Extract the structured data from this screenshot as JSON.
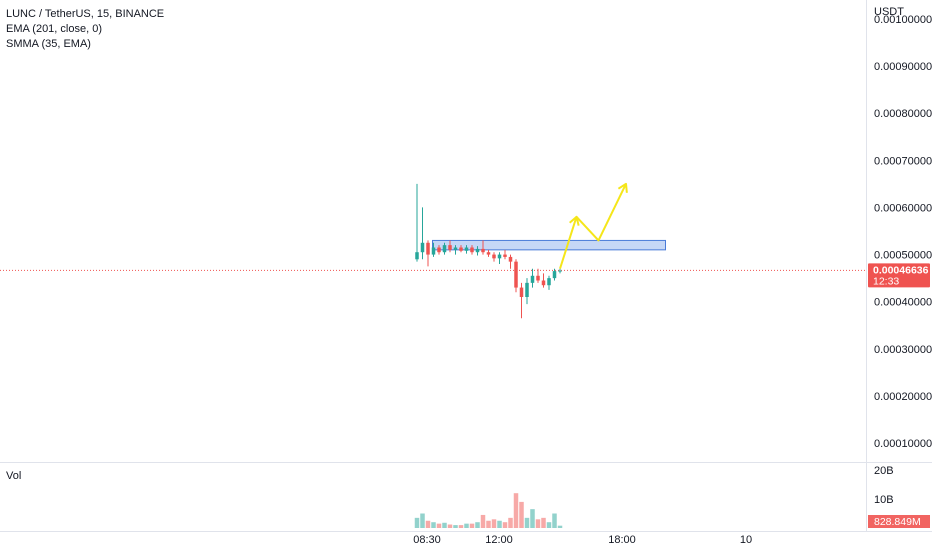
{
  "legend": {
    "symbol": "LUNC / TetherUS, 15, BINANCE",
    "ema": "EMA (201, close, 0)",
    "smma": "SMMA (35, EMA)"
  },
  "volume_label": "Vol",
  "colors": {
    "up": "#26a69a",
    "down": "#ef5350",
    "zone_fill": "#bbd0f5",
    "zone_stroke": "#4a7bd8",
    "projection": "#f5e61a",
    "price_tag": "#ef5350"
  },
  "chart_data": {
    "type": "candlestick",
    "symbol": "LUNC / TetherUS",
    "interval": "15",
    "exchange": "BINANCE",
    "y_unit": "USDT",
    "ylim": [
      6e-05,
      0.00104
    ],
    "y_ticks": [
      "0.00010000",
      "0.00020000",
      "0.00030000",
      "0.00040000",
      "0.00050000",
      "0.00060000",
      "0.00070000",
      "0.00080000",
      "0.00090000",
      "0.00100000"
    ],
    "x_ticks": [
      "08:30",
      "12:00",
      "18:00",
      "10"
    ],
    "last_price": "0.00046636",
    "countdown": "12:33",
    "candles": [
      {
        "o": 0.00049,
        "h": 0.00065,
        "l": 0.000485,
        "c": 0.000505
      },
      {
        "o": 0.000505,
        "h": 0.0006,
        "l": 0.00049,
        "c": 0.000525
      },
      {
        "o": 0.000525,
        "h": 0.00053,
        "l": 0.000475,
        "c": 0.0005
      },
      {
        "o": 0.0005,
        "h": 0.000525,
        "l": 0.000495,
        "c": 0.000515
      },
      {
        "o": 0.000515,
        "h": 0.00052,
        "l": 0.0005,
        "c": 0.000505
      },
      {
        "o": 0.000505,
        "h": 0.000525,
        "l": 0.0005,
        "c": 0.00052
      },
      {
        "o": 0.00052,
        "h": 0.00053,
        "l": 0.000505,
        "c": 0.00051
      },
      {
        "o": 0.00051,
        "h": 0.00052,
        "l": 0.0005,
        "c": 0.000515
      },
      {
        "o": 0.000515,
        "h": 0.00052,
        "l": 0.000505,
        "c": 0.000508
      },
      {
        "o": 0.000508,
        "h": 0.00052,
        "l": 0.000502,
        "c": 0.000515
      },
      {
        "o": 0.000515,
        "h": 0.00052,
        "l": 0.0005,
        "c": 0.000505
      },
      {
        "o": 0.000505,
        "h": 0.000518,
        "l": 0.000498,
        "c": 0.000512
      },
      {
        "o": 0.000512,
        "h": 0.00053,
        "l": 0.0005,
        "c": 0.000505
      },
      {
        "o": 0.000505,
        "h": 0.00051,
        "l": 0.000495,
        "c": 0.0005
      },
      {
        "o": 0.0005,
        "h": 0.000505,
        "l": 0.000485,
        "c": 0.000492
      },
      {
        "o": 0.000492,
        "h": 0.000505,
        "l": 0.00048,
        "c": 0.0005
      },
      {
        "o": 0.0005,
        "h": 0.00051,
        "l": 0.00049,
        "c": 0.000495
      },
      {
        "o": 0.000495,
        "h": 0.0005,
        "l": 0.00047,
        "c": 0.000485
      },
      {
        "o": 0.000485,
        "h": 0.00049,
        "l": 0.00042,
        "c": 0.00043
      },
      {
        "o": 0.00043,
        "h": 0.00044,
        "l": 0.000365,
        "c": 0.00041
      },
      {
        "o": 0.00041,
        "h": 0.00045,
        "l": 0.000395,
        "c": 0.00044
      },
      {
        "o": 0.00044,
        "h": 0.00047,
        "l": 0.00043,
        "c": 0.000455
      },
      {
        "o": 0.000455,
        "h": 0.00047,
        "l": 0.00044,
        "c": 0.000445
      },
      {
        "o": 0.000445,
        "h": 0.00046,
        "l": 0.00043,
        "c": 0.000435
      },
      {
        "o": 0.000435,
        "h": 0.000455,
        "l": 0.000425,
        "c": 0.00045
      },
      {
        "o": 0.00045,
        "h": 0.00047,
        "l": 0.000445,
        "c": 0.000465
      },
      {
        "o": 0.000465,
        "h": 0.00047,
        "l": 0.00046,
        "c": 0.000466
      }
    ],
    "volume_labels": [
      "20B",
      "10B"
    ],
    "volume_ylim": [
      0,
      20
    ],
    "volume_last": "828.849M",
    "volumes": [
      3.5,
      5,
      2.5,
      2,
      1.5,
      1.8,
      1.2,
      1,
      1,
      1.5,
      1.5,
      2,
      4.5,
      2.5,
      3,
      2.5,
      2,
      3.5,
      12,
      9,
      3.5,
      6.5,
      3,
      3.5,
      2,
      5,
      0.8
    ],
    "supply_zone": {
      "from_index": 3,
      "to_index": 45,
      "top": 0.00053,
      "bottom": 0.00051
    },
    "projection_path": [
      {
        "i": 26,
        "y": 0.00047
      },
      {
        "i": 29,
        "y": 0.00058
      },
      {
        "i": 33,
        "y": 0.00053
      },
      {
        "i": 38,
        "y": 0.00065
      }
    ]
  }
}
